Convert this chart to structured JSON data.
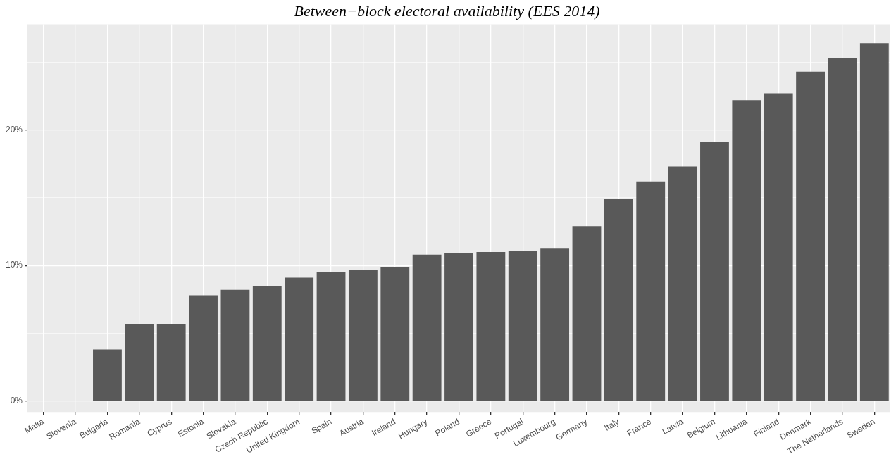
{
  "chart_data": {
    "type": "bar",
    "title": "Between−block electoral availability (EES 2014)",
    "categories": [
      "Malta",
      "Slovenia",
      "Bulgaria",
      "Romania",
      "Cyprus",
      "Estonia",
      "Slovakia",
      "Czech Republic",
      "United Kingdom",
      "Spain",
      "Austria",
      "Ireland",
      "Hungary",
      "Poland",
      "Greece",
      "Portugal",
      "Luxembourg",
      "Germany",
      "Italy",
      "France",
      "Latvia",
      "Belgium",
      "Lithuania",
      "Finland",
      "Denmark",
      "The Netherlands",
      "Sweden"
    ],
    "values": [
      0,
      0,
      3.8,
      5.7,
      5.7,
      7.8,
      8.2,
      8.5,
      9.1,
      9.5,
      9.7,
      9.9,
      10.8,
      10.9,
      11.0,
      11.1,
      11.3,
      12.9,
      14.9,
      16.2,
      17.3,
      19.1,
      22.2,
      22.7,
      24.3,
      25.3,
      26.4
    ],
    "color": "#595959",
    "ylim": [
      -0.8,
      27.8
    ],
    "yticks": [
      {
        "value": 0,
        "label": "0%"
      },
      {
        "value": 5,
        "label": null
      },
      {
        "value": 10,
        "label": "10%"
      },
      {
        "value": 15,
        "label": null
      },
      {
        "value": 20,
        "label": "20%"
      },
      {
        "value": 25,
        "label": null
      }
    ],
    "grid": true
  }
}
